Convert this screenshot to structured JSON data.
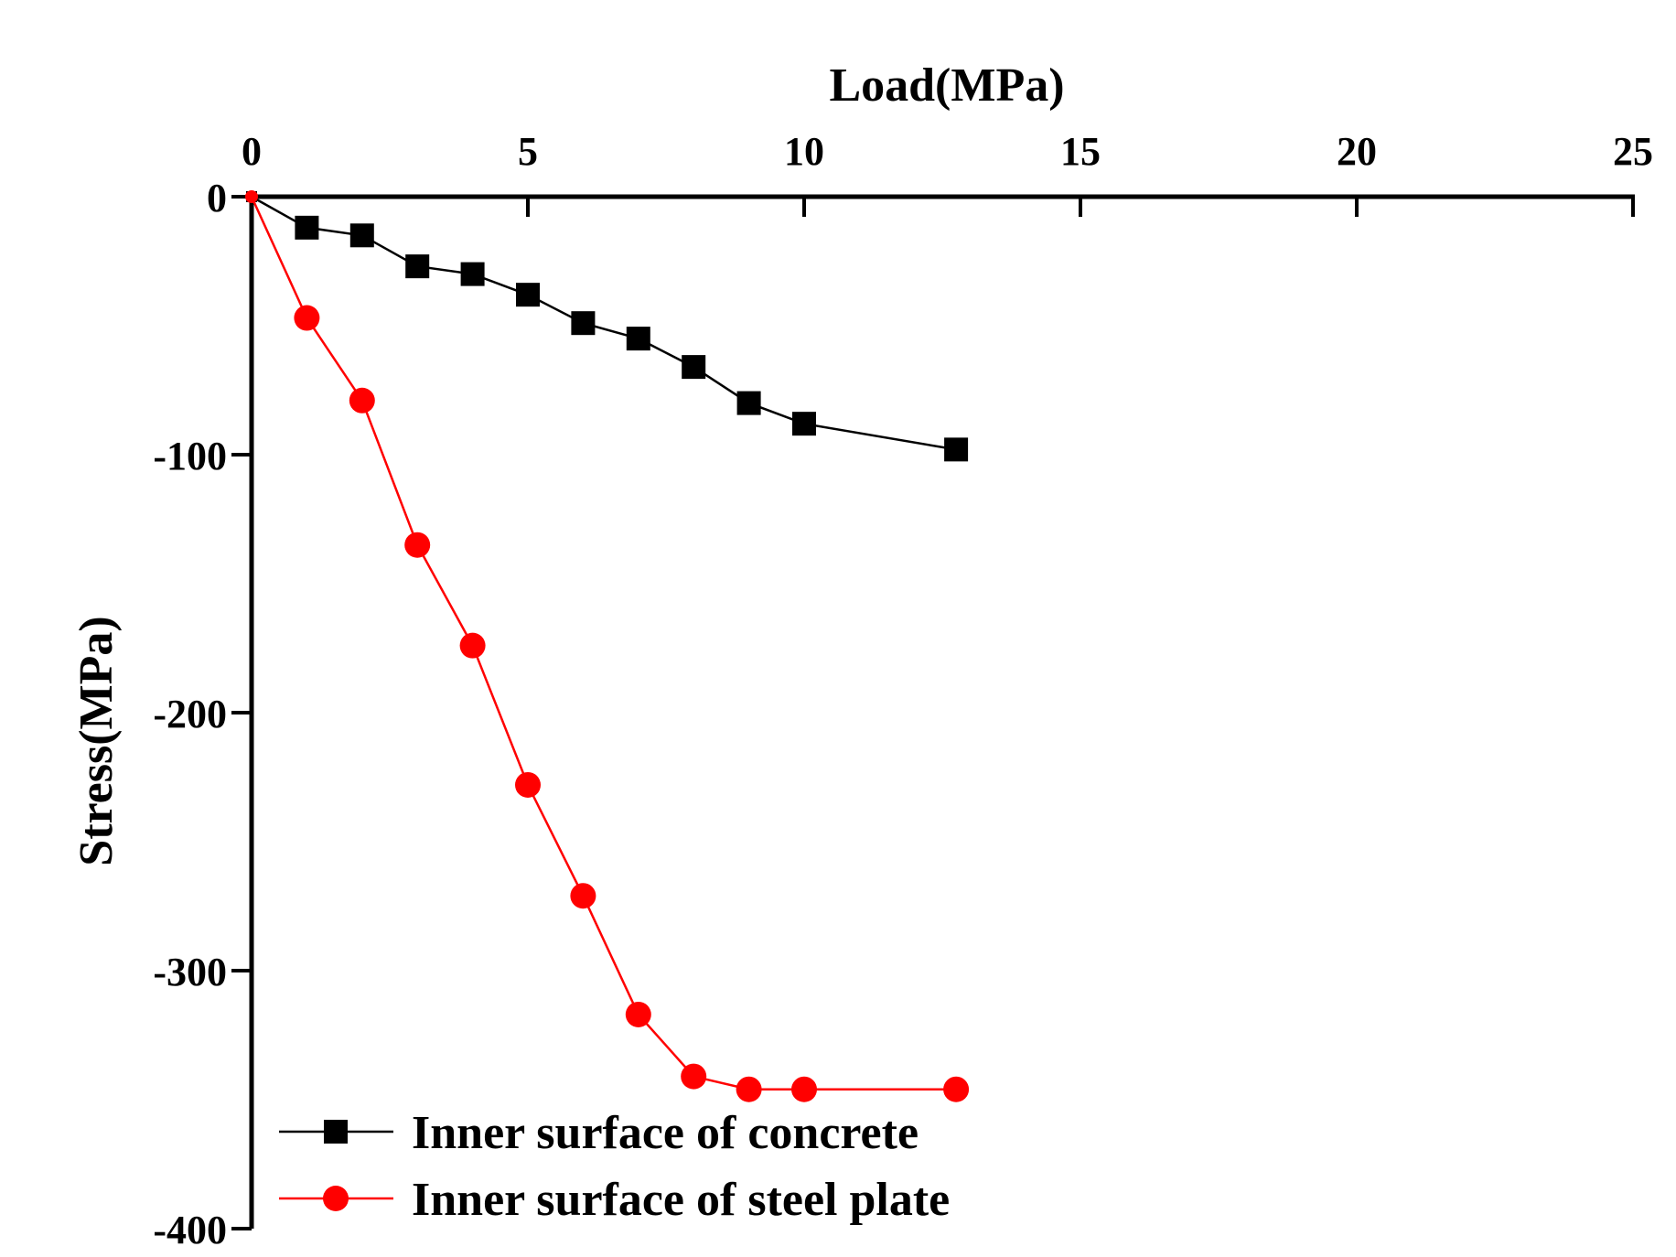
{
  "chart_data": {
    "type": "line",
    "xlabel": "Load(MPa)",
    "ylabel": "Stress(MPa)",
    "xlim": [
      0,
      25
    ],
    "ylim": [
      -400,
      0
    ],
    "xticks": [
      0,
      5,
      10,
      15,
      20,
      25
    ],
    "yticks": [
      0,
      -100,
      -200,
      -300,
      -400
    ],
    "x_axis_position": "top",
    "grid": false,
    "legend_position": "bottom-left",
    "series": [
      {
        "name": "Inner surface of concrete",
        "marker": "square",
        "color": "#000000",
        "x": [
          0,
          1,
          2,
          3,
          4,
          5,
          6,
          7,
          8,
          9,
          10,
          12.75
        ],
        "y": [
          0,
          -12,
          -15,
          -27,
          -30,
          -38,
          -49,
          -55,
          -66,
          -80,
          -88,
          -98
        ]
      },
      {
        "name": "Inner surface of steel plate",
        "marker": "circle",
        "color": "#ff0000",
        "x": [
          0,
          1,
          2,
          3,
          4,
          5,
          6,
          7,
          8,
          9,
          10,
          12.75
        ],
        "y": [
          0,
          -47,
          -79,
          -135,
          -174,
          -228,
          -271,
          -317,
          -341,
          -346,
          -346,
          -346
        ]
      }
    ]
  }
}
